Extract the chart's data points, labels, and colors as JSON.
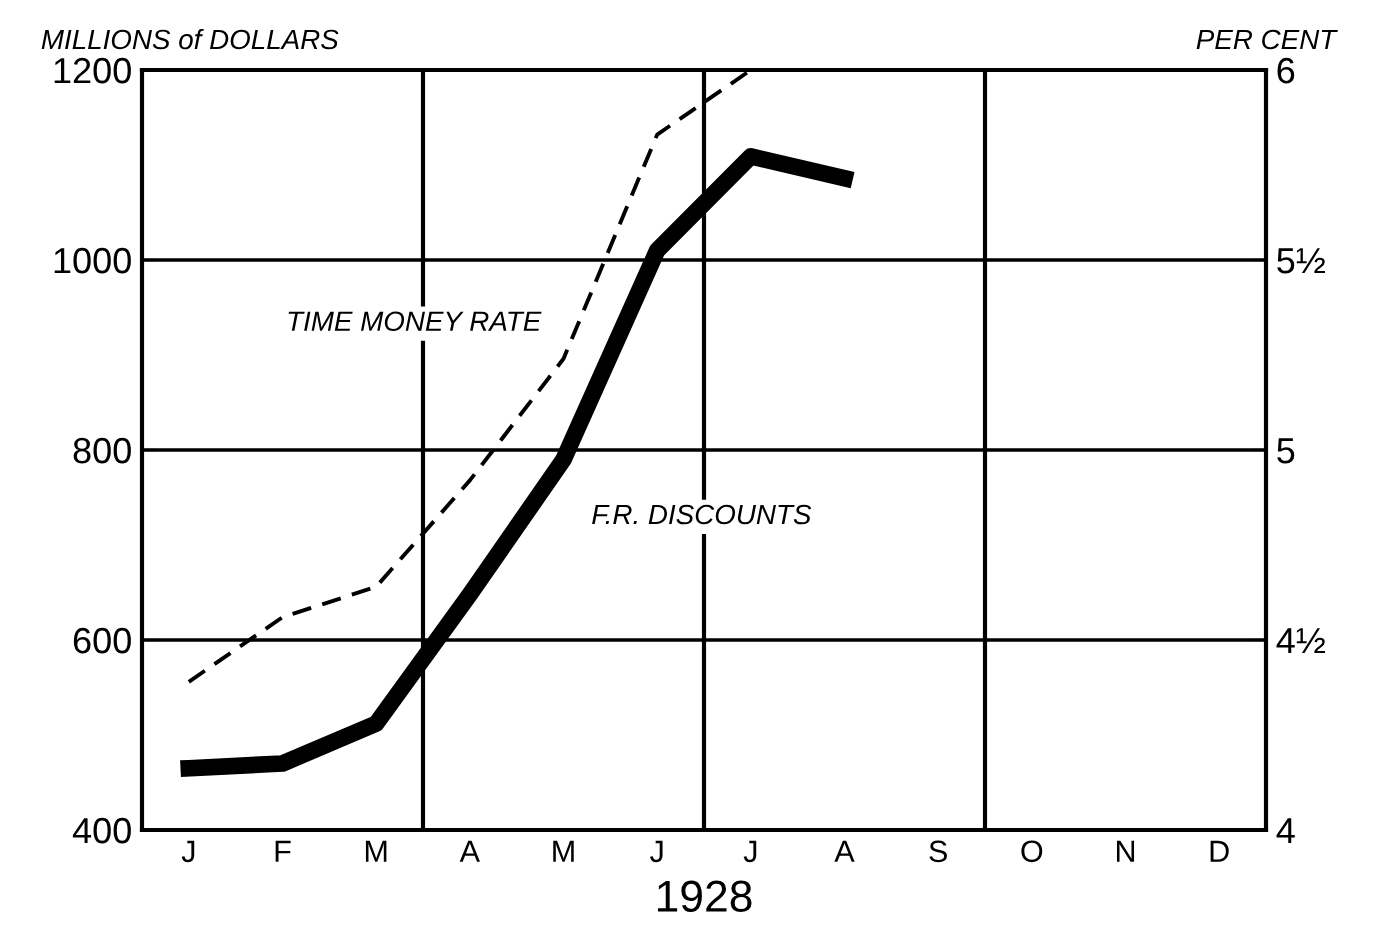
{
  "chart_data": {
    "type": "line",
    "xlabel": "1928",
    "ylabel": "MILLIONS of DOLLARS",
    "y2label": "PER CENT",
    "categories": [
      "J",
      "F",
      "M",
      "A",
      "M",
      "J",
      "J",
      "A",
      "S",
      "O",
      "N",
      "D"
    ],
    "ylim": [
      400,
      1200
    ],
    "yticks": [
      400,
      600,
      800,
      1000,
      1200
    ],
    "y2lim": [
      4,
      6
    ],
    "y2ticks": [
      4,
      {
        "value": 4.5,
        "label": "4½"
      },
      5,
      {
        "value": 5.5,
        "label": "5½"
      },
      6
    ],
    "grid": true,
    "marker": "none",
    "series": [
      {
        "name": "F.R. DISCOUNTS",
        "color": "#000000",
        "line_style": "solid",
        "values": [
          465,
          470,
          512,
          648,
          790,
          1010,
          1109,
          1086,
          null,
          null,
          null,
          null
        ]
      },
      {
        "name": "TIME MONEY RATE",
        "color": "#000000",
        "line_style": "dashed",
        "axis": "y2",
        "values": [
          4.39,
          4.56,
          4.64,
          4.92,
          5.24,
          5.83,
          6.0,
          null,
          null,
          null,
          null,
          null
        ]
      }
    ]
  }
}
